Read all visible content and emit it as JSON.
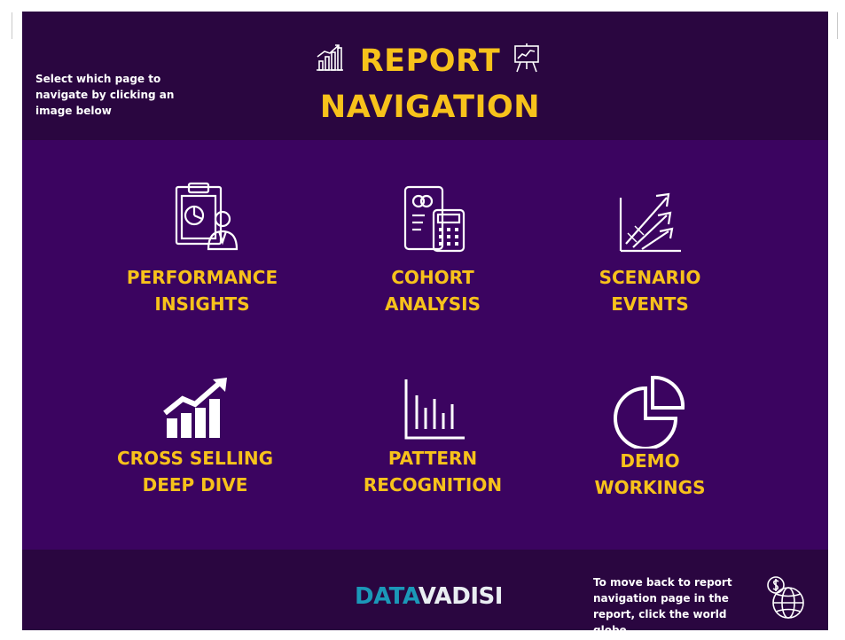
{
  "header": {
    "title_line1": "REPORT",
    "title_line2": "NAVIGATION",
    "instruction": "Select which page to navigate by clicking an image below"
  },
  "tiles": [
    {
      "label": "PERFORMANCE\nINSIGHTS",
      "icon": "clipboard-presenter-icon"
    },
    {
      "label": "COHORT\nANALYSIS",
      "icon": "document-calculator-icon"
    },
    {
      "label": "SCENARIO\nEVENTS",
      "icon": "growth-arrows-icon"
    },
    {
      "label": "CROSS SELLING\nDEEP DIVE",
      "icon": "bar-chart-trend-icon"
    },
    {
      "label": "PATTERN\nRECOGNITION",
      "icon": "bar-chart-icon"
    },
    {
      "label": "DEMO\nWORKINGS",
      "icon": "pie-chart-icon"
    }
  ],
  "footer": {
    "logo_part1": "DATA",
    "logo_part2": "VADISI",
    "back_note": "To move back to report navigation page in the report, click the world globe"
  },
  "colors": {
    "header_bg": "#2a0640",
    "main_bg": "#3b0460",
    "accent": "#f7c21b",
    "logo_teal": "#1b98b8"
  }
}
